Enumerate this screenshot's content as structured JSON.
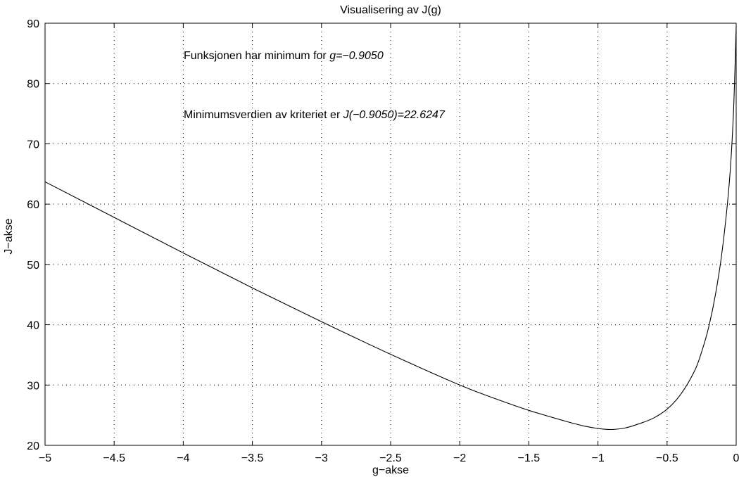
{
  "chart_data": {
    "type": "line",
    "title": "Visualisering av J(g)",
    "xlabel": "g−akse",
    "ylabel": "J−akse",
    "xlim": [
      -5,
      0
    ],
    "ylim": [
      20,
      90
    ],
    "x_ticks": [
      -5,
      -4.5,
      -4,
      -3.5,
      -3,
      -2.5,
      -2,
      -1.5,
      -1,
      -0.5,
      0
    ],
    "x_tick_labels": [
      "−5",
      "−4.5",
      "−4",
      "−3.5",
      "−3",
      "−2.5",
      "−2",
      "−1.5",
      "−1",
      "−0.5",
      "0"
    ],
    "y_ticks": [
      20,
      30,
      40,
      50,
      60,
      70,
      80,
      90
    ],
    "y_tick_labels": [
      "20",
      "30",
      "40",
      "50",
      "60",
      "70",
      "80",
      "90"
    ],
    "grid": true,
    "annotations": {
      "line1_text": "Funksjonen har minimum for ",
      "line1_value": "g=−0.9050",
      "line2_text": "Minimumsverdien av kriteriet er ",
      "line2_value": "J(−0.9050)=22.6247"
    },
    "series": [
      {
        "x": [
          -5,
          -4.5,
          -4,
          -3.5,
          -3,
          -2.5,
          -2,
          -1.75,
          -1.5,
          -1.25,
          -1.1,
          -1,
          -0.905,
          -0.8,
          -0.7,
          -0.6,
          -0.5,
          -0.4,
          -0.3,
          -0.25,
          -0.2,
          -0.15,
          -0.1,
          -0.05,
          -0.02,
          0
        ],
        "y": [
          63.7,
          57.8,
          51.9,
          46.1,
          40.5,
          35.1,
          30.0,
          27.8,
          25.8,
          24.1,
          23.2,
          22.8,
          22.6247,
          22.9,
          23.6,
          24.5,
          26.0,
          28.5,
          32.4,
          35.5,
          39.5,
          45.0,
          52.5,
          63.5,
          75.0,
          89.5
        ]
      }
    ]
  }
}
